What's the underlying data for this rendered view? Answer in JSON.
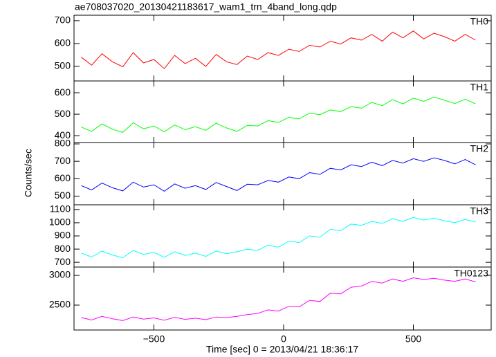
{
  "figure": {
    "title": "ae708037020_20130421183617_wam1_trn_4band_long.qdp",
    "xlabel": "Time [sec] 0 = 2013/04/21 18:36:17",
    "ylabel": "Counts/sec"
  },
  "chart_data": [
    {
      "type": "line",
      "xlim": [
        -808,
        800
      ],
      "xticks": [
        {
          "value": -500,
          "label": "−500"
        },
        0,
        500
      ],
      "ylim": [
        436,
        724
      ],
      "yticks": [
        500,
        600,
        700
      ],
      "x": [
        -780,
        -740,
        -700,
        -660,
        -620,
        -580,
        -540,
        -500,
        -460,
        -420,
        -380,
        -340,
        -300,
        -260,
        -220,
        -180,
        -140,
        -100,
        -60,
        -20,
        20,
        60,
        100,
        140,
        180,
        220,
        260,
        300,
        340,
        380,
        420,
        460,
        500,
        540,
        580,
        620,
        660,
        700,
        740
      ],
      "series": [
        {
          "name": "TH0",
          "color": "#ff0000",
          "values": [
            540,
            505,
            555,
            520,
            498,
            560,
            515,
            530,
            490,
            548,
            512,
            535,
            500,
            552,
            520,
            508,
            545,
            530,
            560,
            548,
            575,
            565,
            592,
            585,
            610,
            598,
            625,
            615,
            640,
            610,
            650,
            625,
            655,
            620,
            645,
            630,
            610,
            640,
            615
          ]
        }
      ]
    },
    {
      "type": "line",
      "xlim": [
        -808,
        800
      ],
      "xticks": [
        {
          "value": -500,
          "label": "−500"
        },
        0,
        500
      ],
      "ylim": [
        368,
        655
      ],
      "yticks": [
        400,
        500,
        600
      ],
      "x": [
        -780,
        -740,
        -700,
        -660,
        -620,
        -580,
        -540,
        -500,
        -460,
        -420,
        -380,
        -340,
        -300,
        -260,
        -220,
        -180,
        -140,
        -100,
        -60,
        -20,
        20,
        60,
        100,
        140,
        180,
        220,
        260,
        300,
        340,
        380,
        420,
        460,
        500,
        540,
        580,
        620,
        660,
        700,
        740
      ],
      "series": [
        {
          "name": "TH1",
          "color": "#00ff00",
          "values": [
            440,
            420,
            455,
            430,
            415,
            460,
            432,
            445,
            418,
            450,
            428,
            442,
            425,
            458,
            436,
            420,
            448,
            445,
            470,
            462,
            485,
            478,
            505,
            498,
            520,
            512,
            535,
            528,
            555,
            540,
            568,
            548,
            575,
            560,
            580,
            565,
            550,
            570,
            548
          ]
        }
      ]
    },
    {
      "type": "line",
      "xlim": [
        -808,
        800
      ],
      "xticks": [
        {
          "value": -500,
          "label": "−500"
        },
        0,
        500
      ],
      "ylim": [
        450,
        808
      ],
      "yticks": [
        500,
        600,
        700,
        800
      ],
      "x": [
        -780,
        -740,
        -700,
        -660,
        -620,
        -580,
        -540,
        -500,
        -460,
        -420,
        -380,
        -340,
        -300,
        -260,
        -220,
        -180,
        -140,
        -100,
        -60,
        -20,
        20,
        60,
        100,
        140,
        180,
        220,
        260,
        300,
        340,
        380,
        420,
        460,
        500,
        540,
        580,
        620,
        660,
        700,
        740
      ],
      "series": [
        {
          "name": "TH2",
          "color": "#0000ff",
          "values": [
            560,
            535,
            575,
            548,
            530,
            580,
            552,
            565,
            528,
            570,
            545,
            560,
            538,
            578,
            555,
            532,
            568,
            565,
            590,
            580,
            610,
            600,
            635,
            625,
            660,
            650,
            680,
            670,
            695,
            675,
            705,
            690,
            715,
            700,
            720,
            705,
            685,
            710,
            680
          ]
        }
      ]
    },
    {
      "type": "line",
      "xlim": [
        -808,
        800
      ],
      "xticks": [
        {
          "value": -500,
          "label": "−500"
        },
        0,
        500
      ],
      "ylim": [
        664,
        1136
      ],
      "yticks": [
        700,
        800,
        900,
        1000,
        1100
      ],
      "x": [
        -780,
        -740,
        -700,
        -660,
        -620,
        -580,
        -540,
        -500,
        -460,
        -420,
        -380,
        -340,
        -300,
        -260,
        -220,
        -180,
        -140,
        -100,
        -60,
        -20,
        20,
        60,
        100,
        140,
        180,
        220,
        260,
        300,
        340,
        380,
        420,
        460,
        500,
        540,
        580,
        620,
        660,
        700,
        740
      ],
      "series": [
        {
          "name": "TH3",
          "color": "#00ffff",
          "values": [
            770,
            740,
            785,
            755,
            735,
            790,
            760,
            775,
            738,
            780,
            752,
            770,
            745,
            785,
            765,
            780,
            800,
            790,
            830,
            815,
            860,
            850,
            900,
            890,
            950,
            940,
            990,
            980,
            1010,
            995,
            1030,
            1010,
            1040,
            1020,
            1035,
            1015,
            1000,
            1025,
            1005
          ]
        }
      ]
    },
    {
      "type": "line",
      "xlim": [
        -808,
        800
      ],
      "xticks": [
        {
          "value": -500,
          "label": "−500"
        },
        0,
        500
      ],
      "ylim": [
        2081,
        3140
      ],
      "yticks": [
        2500,
        3000
      ],
      "x": [
        -780,
        -740,
        -700,
        -660,
        -620,
        -580,
        -540,
        -500,
        -460,
        -420,
        -380,
        -340,
        -300,
        -260,
        -220,
        -180,
        -140,
        -100,
        -60,
        -20,
        20,
        60,
        100,
        140,
        180,
        220,
        260,
        300,
        340,
        380,
        420,
        460,
        500,
        540,
        580,
        620,
        660,
        700,
        740
      ],
      "series": [
        {
          "name": "TH0123",
          "color": "#ff00ff",
          "values": [
            2290,
            2250,
            2310,
            2270,
            2240,
            2300,
            2265,
            2285,
            2245,
            2295,
            2260,
            2280,
            2255,
            2300,
            2290,
            2310,
            2340,
            2360,
            2420,
            2400,
            2480,
            2470,
            2580,
            2560,
            2700,
            2690,
            2800,
            2820,
            2900,
            2870,
            2940,
            2900,
            2960,
            2930,
            2950,
            2920,
            2900,
            2940,
            2890
          ]
        }
      ]
    }
  ]
}
